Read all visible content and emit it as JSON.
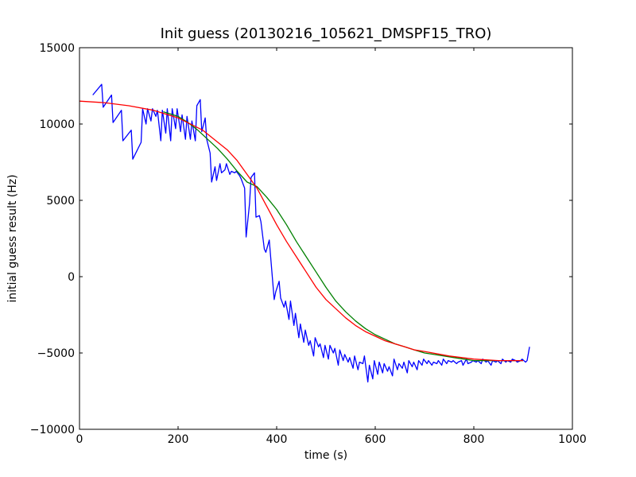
{
  "chart_data": {
    "type": "line",
    "title": "Init guess (20130216_105621_DMSPF15_TRO)",
    "xlabel": "time (s)",
    "ylabel": "initial guess result (Hz)",
    "xlim": [
      0,
      1000
    ],
    "ylim": [
      -10000,
      15000
    ],
    "xticks": [
      0,
      200,
      400,
      600,
      800,
      1000
    ],
    "yticks": [
      -10000,
      -5000,
      0,
      5000,
      10000,
      15000
    ],
    "grid": false,
    "legend": "none",
    "series": [
      {
        "color": "#0000ff",
        "x": [
          27,
          45,
          48,
          65,
          68,
          85,
          88,
          105,
          108,
          125,
          128,
          135,
          138,
          145,
          148,
          155,
          158,
          165,
          168,
          175,
          178,
          185,
          188,
          195,
          198,
          205,
          208,
          215,
          218,
          225,
          228,
          235,
          238,
          245,
          248,
          255,
          258,
          265,
          268,
          275,
          278,
          285,
          288,
          295,
          298,
          305,
          308,
          315,
          318,
          325,
          328,
          335,
          338,
          345,
          348,
          355,
          358,
          365,
          368,
          375,
          378,
          385,
          388,
          395,
          398,
          405,
          408,
          415,
          418,
          425,
          428,
          435,
          438,
          445,
          448,
          455,
          458,
          465,
          468,
          475,
          478,
          485,
          488,
          495,
          498,
          505,
          508,
          515,
          518,
          525,
          528,
          535,
          538,
          545,
          548,
          555,
          558,
          565,
          568,
          575,
          578,
          585,
          588,
          595,
          598,
          605,
          608,
          615,
          618,
          625,
          628,
          635,
          638,
          645,
          648,
          655,
          658,
          665,
          668,
          675,
          678,
          685,
          688,
          695,
          698,
          705,
          708,
          715,
          718,
          725,
          728,
          735,
          738,
          745,
          748,
          755,
          758,
          765,
          768,
          775,
          778,
          785,
          788,
          795,
          798,
          805,
          808,
          815,
          818,
          825,
          828,
          835,
          838,
          845,
          848,
          855,
          858,
          865,
          868,
          875,
          878,
          885,
          888,
          895,
          898,
          905,
          908,
          913
        ],
        "y": [
          11900,
          12600,
          11100,
          11900,
          10100,
          10900,
          8900,
          9600,
          7700,
          8800,
          11000,
          10000,
          11000,
          10200,
          11000,
          10500,
          10900,
          8900,
          10900,
          9400,
          11000,
          8900,
          11000,
          9700,
          11000,
          9500,
          10600,
          9000,
          10500,
          9000,
          10200,
          8900,
          11200,
          11600,
          9500,
          10400,
          9000,
          8100,
          6200,
          7200,
          6300,
          7400,
          6800,
          7000,
          7400,
          6700,
          6900,
          6800,
          6900,
          6600,
          6400,
          5800,
          2600,
          4800,
          6500,
          6800,
          3900,
          4000,
          3600,
          1800,
          1600,
          2400,
          1200,
          -1500,
          -1000,
          -300,
          -1400,
          -2000,
          -1600,
          -2800,
          -1600,
          -3200,
          -2400,
          -4000,
          -3100,
          -4300,
          -3500,
          -4500,
          -4200,
          -5200,
          -4000,
          -4600,
          -4400,
          -5300,
          -4500,
          -5400,
          -4500,
          -5000,
          -4700,
          -5800,
          -4800,
          -5500,
          -5100,
          -5600,
          -5300,
          -6000,
          -5200,
          -6100,
          -5600,
          -5700,
          -5200,
          -6900,
          -5800,
          -6700,
          -5500,
          -6400,
          -5600,
          -6300,
          -5700,
          -6200,
          -5900,
          -6500,
          -5400,
          -6100,
          -5700,
          -6000,
          -5600,
          -6300,
          -5500,
          -5900,
          -5600,
          -6100,
          -5500,
          -5800,
          -5400,
          -5700,
          -5500,
          -5800,
          -5600,
          -5700,
          -5500,
          -5800,
          -5400,
          -5700,
          -5500,
          -5600,
          -5500,
          -5700,
          -5600,
          -5500,
          -5800,
          -5400,
          -5700,
          -5600,
          -5500,
          -5600,
          -5500,
          -5700,
          -5400,
          -5600,
          -5500,
          -5800,
          -5500,
          -5600,
          -5500,
          -5700,
          -5400,
          -5600,
          -5500,
          -5600,
          -5400,
          -5500,
          -5600,
          -5500,
          -5400,
          -5600,
          -5500,
          -4600
        ]
      },
      {
        "color": "#008000",
        "x": [
          170,
          200,
          220,
          240,
          260,
          280,
          300,
          320,
          340,
          360,
          380,
          400,
          420,
          440,
          460,
          480,
          500,
          520,
          540,
          560,
          580,
          600,
          620,
          640,
          660,
          680,
          700,
          720,
          740,
          760,
          780,
          800,
          820,
          840,
          860,
          880,
          900
        ],
        "y": [
          10800,
          10500,
          10100,
          9600,
          9000,
          8400,
          7700,
          6900,
          6200,
          5900,
          5200,
          4400,
          3400,
          2300,
          1300,
          300,
          -700,
          -1600,
          -2300,
          -2900,
          -3400,
          -3800,
          -4100,
          -4400,
          -4600,
          -4800,
          -5000,
          -5100,
          -5200,
          -5300,
          -5400,
          -5500,
          -5500,
          -5500,
          -5500,
          -5500,
          -5500
        ]
      },
      {
        "color": "#ff0000",
        "x": [
          0,
          50,
          100,
          150,
          200,
          250,
          300,
          320,
          340,
          360,
          380,
          400,
          420,
          440,
          460,
          480,
          500,
          520,
          540,
          560,
          580,
          600,
          620,
          640,
          660,
          680,
          700,
          750,
          800,
          850,
          900
        ],
        "y": [
          11500,
          11400,
          11200,
          10900,
          10400,
          9600,
          8300,
          7600,
          6700,
          5800,
          4600,
          3400,
          2300,
          1300,
          300,
          -700,
          -1500,
          -2100,
          -2700,
          -3200,
          -3600,
          -3900,
          -4200,
          -4400,
          -4600,
          -4800,
          -4900,
          -5200,
          -5400,
          -5500,
          -5500
        ]
      }
    ]
  }
}
